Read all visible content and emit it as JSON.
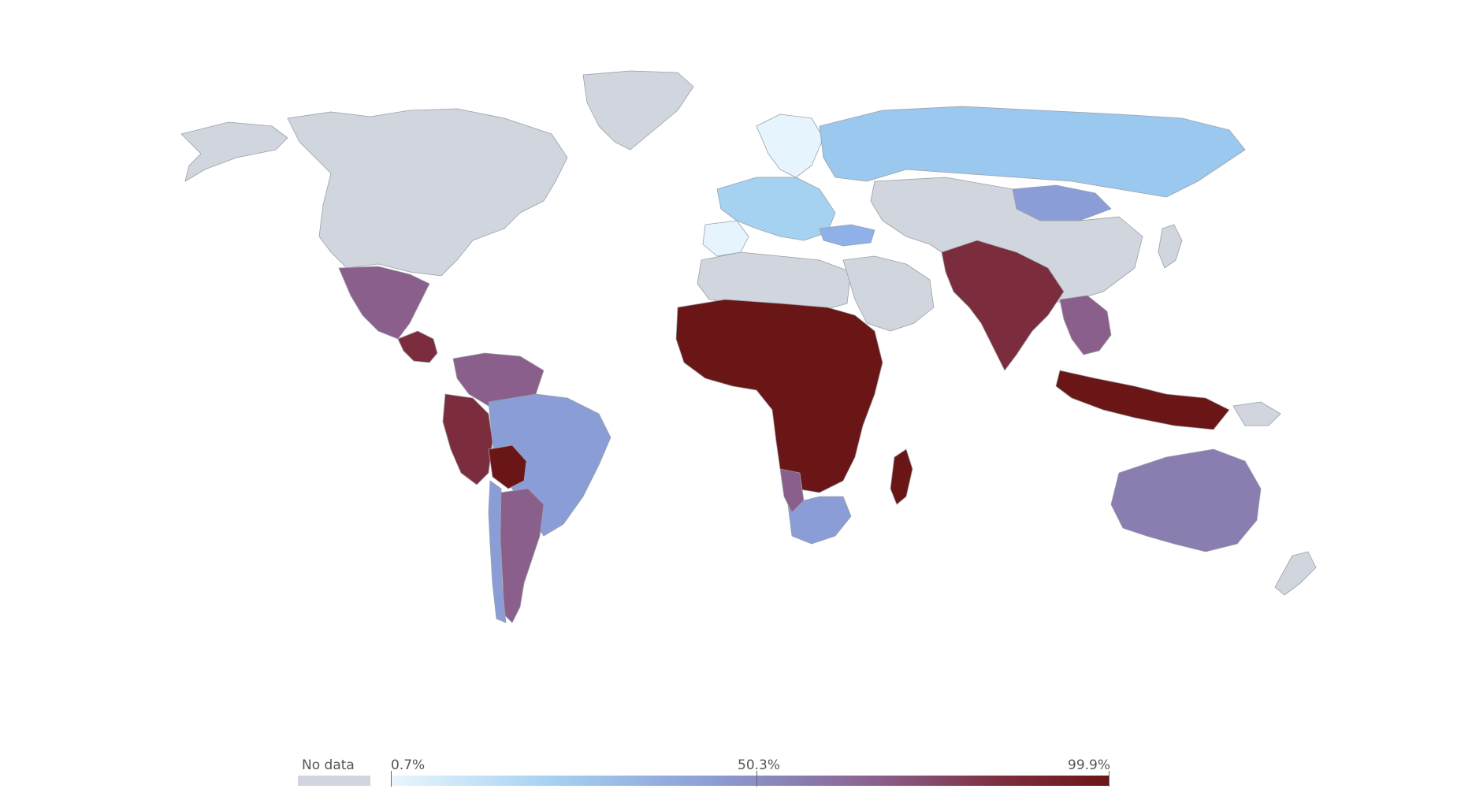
{
  "map": {
    "type": "choropleth-world",
    "colors": {
      "no_data": "#d1d5de",
      "scale": [
        "#e6f5fd",
        "#a6d2f2",
        "#8b9dd6",
        "#8a5f8c",
        "#7c2d3d",
        "#6b1616"
      ],
      "border": "#9aa0a8"
    },
    "regions": [
      {
        "name": "North America (Canada/USA)",
        "fill": "no_data"
      },
      {
        "name": "Alaska",
        "fill": "no_data"
      },
      {
        "name": "Greenland",
        "fill": "no_data"
      },
      {
        "name": "Mexico",
        "fill": "#8a5f8c"
      },
      {
        "name": "Central America",
        "fill": "#7c2d3d"
      },
      {
        "name": "Colombia/Venezuela",
        "fill": "#8a5f8c"
      },
      {
        "name": "Peru/Ecuador",
        "fill": "#7c2d3d"
      },
      {
        "name": "Brazil",
        "fill": "#8b9dd6"
      },
      {
        "name": "Bolivia",
        "fill": "#6b1616"
      },
      {
        "name": "Argentina",
        "fill": "#8a5f8c"
      },
      {
        "name": "Chile",
        "fill": "#8b9dd6"
      },
      {
        "name": "Western Europe",
        "fill": "#a6d2f2"
      },
      {
        "name": "Scandinavia",
        "fill": "#e6f5fd"
      },
      {
        "name": "Iberia",
        "fill": "#e6f5fd"
      },
      {
        "name": "Russia",
        "fill": "#9bc8ef"
      },
      {
        "name": "Mongolia",
        "fill": "#8b9dd6"
      },
      {
        "name": "China/Central Asia",
        "fill": "no_data"
      },
      {
        "name": "North Africa",
        "fill": "no_data"
      },
      {
        "name": "Middle East",
        "fill": "no_data"
      },
      {
        "name": "Turkey",
        "fill": "#8fb0e8"
      },
      {
        "name": "Sub-Saharan Africa",
        "fill": "#6b1616"
      },
      {
        "name": "Southern Africa",
        "fill": "#8b9dd6"
      },
      {
        "name": "Namibia",
        "fill": "#8a5f8c"
      },
      {
        "name": "Madagascar",
        "fill": "#6b1616"
      },
      {
        "name": "South Asia",
        "fill": "#7c2d3d"
      },
      {
        "name": "Southeast Asia",
        "fill": "#8a5f8c"
      },
      {
        "name": "Indonesia",
        "fill": "#6b1616"
      },
      {
        "name": "Australia",
        "fill": "#8a7db0"
      },
      {
        "name": "New Zealand",
        "fill": "no_data"
      },
      {
        "name": "Papua New Guinea",
        "fill": "no_data"
      },
      {
        "name": "Japan",
        "fill": "no_data"
      }
    ]
  },
  "legend": {
    "no_data_label": "No data",
    "min_label": "0.7%",
    "mid_label": "50.3%",
    "max_label": "99.9%",
    "min_value": 0.7,
    "mid_value": 50.3,
    "max_value": 99.9
  }
}
